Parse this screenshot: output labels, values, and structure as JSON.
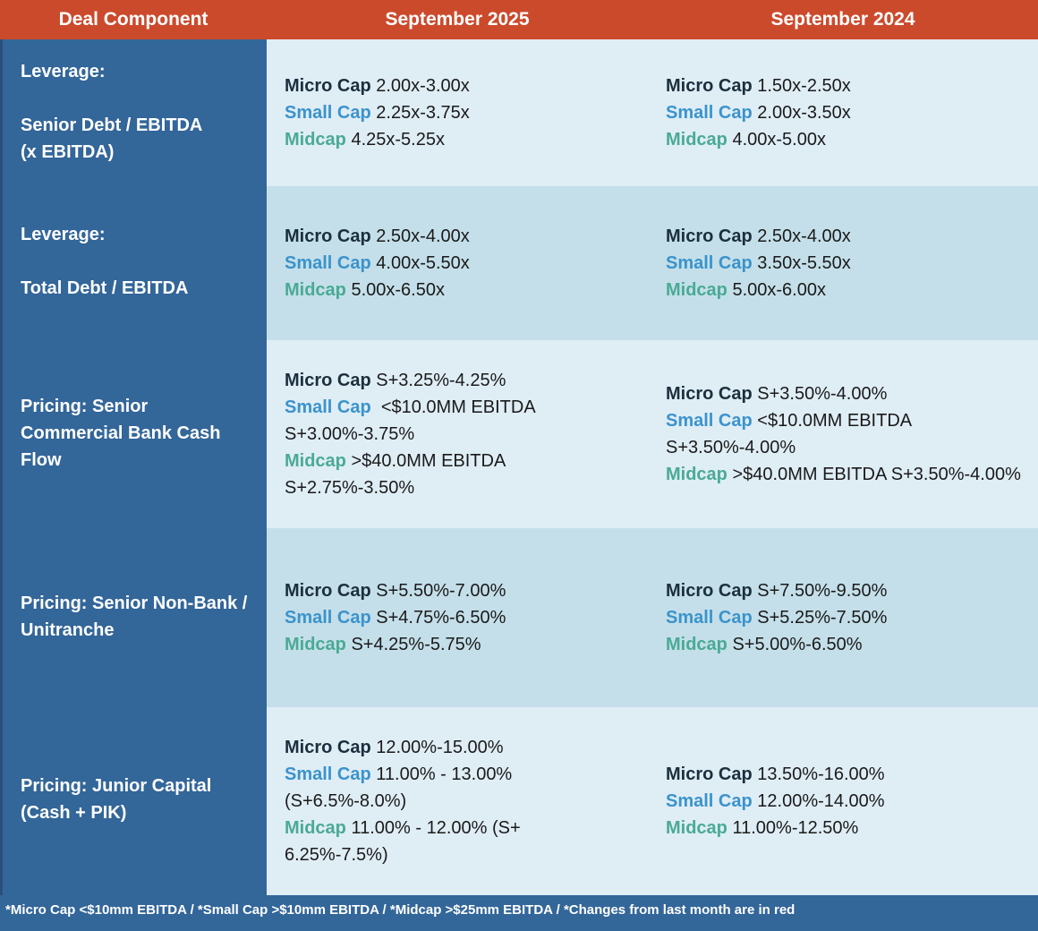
{
  "header": {
    "col1": "Deal Component",
    "col2": "September 2025",
    "col3": "September 2024"
  },
  "tiers": {
    "micro": "Micro Cap",
    "small": "Small Cap",
    "mid": "Midcap"
  },
  "rows": [
    {
      "label_line1": "Leverage:",
      "label_line2": "Senior Debt / EBITDA",
      "label_line3": "(x EBITDA)",
      "sep2025": {
        "micro": "2.00x-3.00x",
        "small": "2.25x-3.75x",
        "mid": "4.25x-5.25x"
      },
      "sep2024": {
        "micro": "1.50x-2.50x",
        "small": "2.00x-3.50x",
        "mid": "4.00x-5.00x"
      }
    },
    {
      "label_line1": "Leverage:",
      "label_line2": "Total Debt / EBITDA",
      "sep2025": {
        "micro": "2.50x-4.00x",
        "small": "4.00x-5.50x",
        "mid": "5.00x-6.50x"
      },
      "sep2024": {
        "micro": "2.50x-4.00x",
        "small": "3.50x-5.50x",
        "mid": "5.00x-6.00x"
      }
    },
    {
      "label_line1": "Pricing: Senior",
      "label_line2": "Commercial Bank Cash",
      "label_line3": "Flow",
      "sep2025": {
        "micro": "S+3.25%-4.25%",
        "small": "<$10.0MM EBITDA S+3.00%-3.75%",
        "mid": ">$40.0MM EBITDA S+2.75%-3.50%"
      },
      "sep2024": {
        "micro": "S+3.50%-4.00%",
        "small": "<$10.0MM EBITDA S+3.50%-4.00%",
        "mid": ">$40.0MM EBITDA S+3.50%-4.00%"
      }
    },
    {
      "label_line1": "Pricing: Senior Non-Bank /",
      "label_line2": "Unitranche",
      "sep2025": {
        "micro": "S+5.50%-7.00%",
        "small": "S+4.75%-6.50%",
        "mid": "S+4.25%-5.75%"
      },
      "sep2024": {
        "micro": "S+7.50%-9.50%",
        "small": "S+5.25%-7.50%",
        "mid": "S+5.00%-6.50%"
      }
    },
    {
      "label_line1": "Pricing: Junior Capital",
      "label_line2": "(Cash + PIK)",
      "sep2025": {
        "micro": "12.00%-15.00%",
        "small": "11.00% - 13.00% (S+6.5%-8.0%)",
        "mid": "11.00% - 12.00% (S+ 6.25%-7.5%)"
      },
      "sep2024": {
        "micro": "13.50%-16.00%",
        "small": "12.00%-14.00%",
        "mid": "11.00%-12.50%"
      }
    }
  ],
  "footer": "*Micro Cap <$10mm EBITDA / *Small Cap >$10mm EBITDA / *Midcap >$25mm EBITDA / *Changes from last month are in red",
  "colors": {
    "header_bg": "#cc4a2c",
    "label_bg": "#336699",
    "row_light": "#dfedf5",
    "row_dark": "#c4dfe9",
    "micro": "#1b2f3d",
    "small": "#3b93cc",
    "mid": "#4aaa95"
  }
}
